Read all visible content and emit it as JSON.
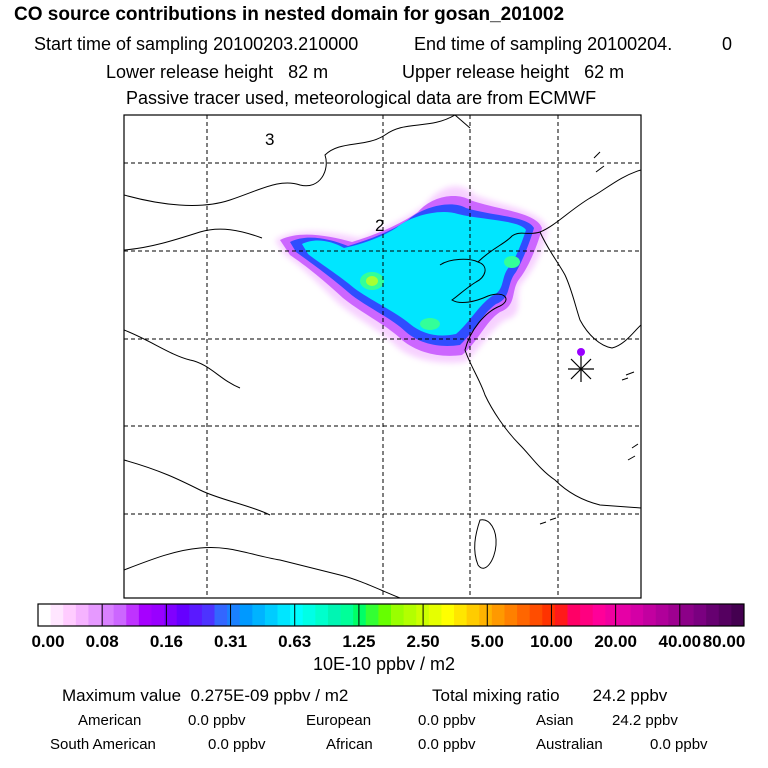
{
  "header": {
    "title": "CO  source contributions in nested domain for gosan_201002",
    "start_label": "Start time of sampling",
    "start_value": "20100203.210000",
    "end_label": "End time of sampling",
    "end_value": "20100204.",
    "end_suffix": "0",
    "lower_label": "Lower release height",
    "lower_value": "82 m",
    "upper_label": "Upper release height",
    "upper_value": "62 m",
    "note": "Passive tracer used, meteorological data are from ECMWF"
  },
  "map": {
    "region_labels": [
      "3",
      "2"
    ],
    "frame_color": "#000000",
    "grid_style": "dashed",
    "receptor_marker": "star-icon"
  },
  "colorbar": {
    "labels": [
      "0.00",
      "0.08",
      "0.16",
      "0.31",
      "0.63",
      "1.25",
      "2.50",
      "5.00",
      "10.00",
      "20.00",
      "40.00",
      "80.00"
    ],
    "colors": [
      "#ffffff",
      "#ffe6ff",
      "#ffccff",
      "#f5b3ff",
      "#e699ff",
      "#d980ff",
      "#cc66ff",
      "#bf33ff",
      "#a600ff",
      "#9900ff",
      "#8000ff",
      "#6600ff",
      "#5a1aff",
      "#4d33ff",
      "#3366ff",
      "#1a80ff",
      "#0099ff",
      "#00b3ff",
      "#00ccff",
      "#00e6ff",
      "#00ffff",
      "#00ffe6",
      "#00ffcc",
      "#00f5b3",
      "#00ff99",
      "#00ff66",
      "#33ff33",
      "#66ff00",
      "#99ff00",
      "#b3ff00",
      "#ccff00",
      "#e6ff00",
      "#ffff00",
      "#ffe600",
      "#ffcc00",
      "#ffb300",
      "#ff9900",
      "#ff8000",
      "#ff6600",
      "#ff4d00",
      "#ff3300",
      "#ff1a1a",
      "#ff0066",
      "#ff0080",
      "#ff0099",
      "#f000a0",
      "#e600a6",
      "#d400a6",
      "#c200a0",
      "#b0009a",
      "#9e0090",
      "#8c0088",
      "#7a0080",
      "#660070",
      "#550060",
      "#440050"
    ],
    "units": "10E-10 ppbv / m2"
  },
  "summary": {
    "max_label": "Maximum value",
    "max_value": "0.275E-09 ppbv / m2",
    "total_label": "Total mixing ratio",
    "total_value": "24.2 ppbv",
    "regions": [
      {
        "name": "American",
        "value": "0.0 ppbv"
      },
      {
        "name": "European",
        "value": "0.0 ppbv"
      },
      {
        "name": "Asian",
        "value": "24.2 ppbv"
      },
      {
        "name": "South American",
        "value": "0.0 ppbv"
      },
      {
        "name": "African",
        "value": "0.0 ppbv"
      },
      {
        "name": "Australian",
        "value": "0.0 ppbv"
      }
    ]
  }
}
